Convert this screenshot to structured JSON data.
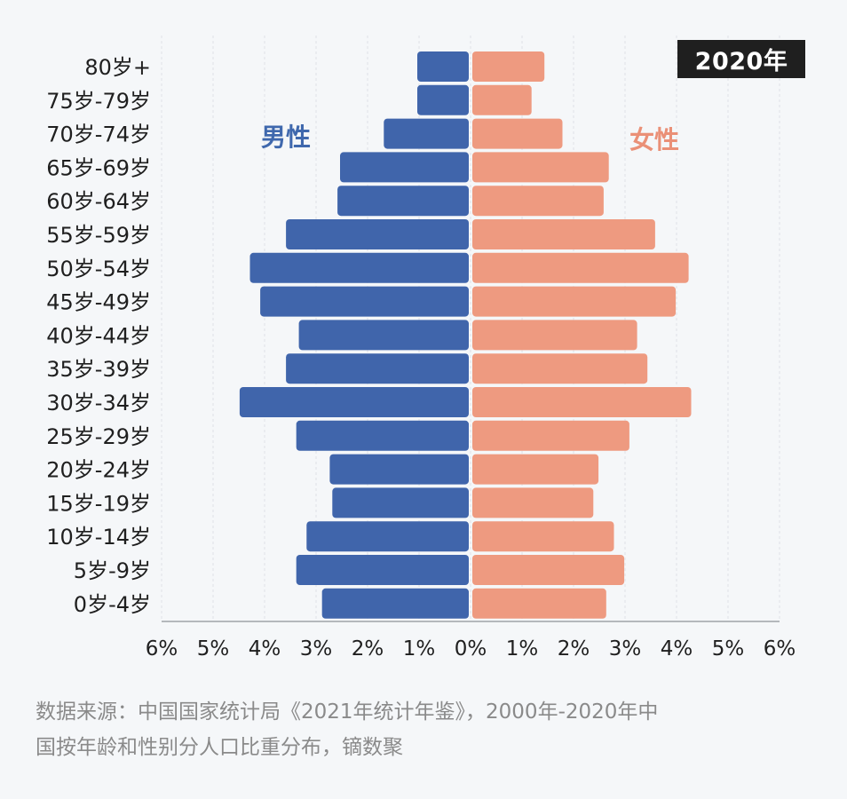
{
  "chart_data": {
    "type": "bar",
    "orientation": "horizontal",
    "subtype": "population-pyramid",
    "year_badge": "2020年",
    "categories": [
      "80岁+",
      "75岁-79岁",
      "70岁-74岁",
      "65岁-69岁",
      "60岁-64岁",
      "55岁-59岁",
      "50岁-54岁",
      "45岁-49岁",
      "40岁-44岁",
      "35岁-39岁",
      "30岁-34岁",
      "25岁-29岁",
      "20岁-24岁",
      "15岁-19岁",
      "10岁-14岁",
      "5岁-9岁",
      "0岁-4岁"
    ],
    "series": [
      {
        "name": "男性",
        "color": "#4065ab",
        "side": "left",
        "values": [
          1.0,
          1.0,
          1.65,
          2.5,
          2.55,
          3.55,
          4.25,
          4.05,
          3.3,
          3.55,
          4.45,
          3.35,
          2.7,
          2.65,
          3.15,
          3.35,
          2.85
        ]
      },
      {
        "name": "女性",
        "color": "#ee9a80",
        "side": "right",
        "values": [
          1.4,
          1.15,
          1.75,
          2.65,
          2.55,
          3.55,
          4.2,
          3.95,
          3.2,
          3.4,
          4.25,
          3.05,
          2.45,
          2.35,
          2.75,
          2.95,
          2.6
        ]
      }
    ],
    "x_ticks": [
      "6%",
      "5%",
      "4%",
      "3%",
      "2%",
      "1%",
      "0%",
      "1%",
      "2%",
      "3%",
      "4%",
      "5%",
      "6%"
    ],
    "xlim": [
      -6,
      6
    ],
    "grid": true,
    "source_note": "数据来源：中国国家统计局《2021年统计年鉴》，2000年-2020年中\n国按年龄和性别分人口比重分布，镝数聚"
  }
}
